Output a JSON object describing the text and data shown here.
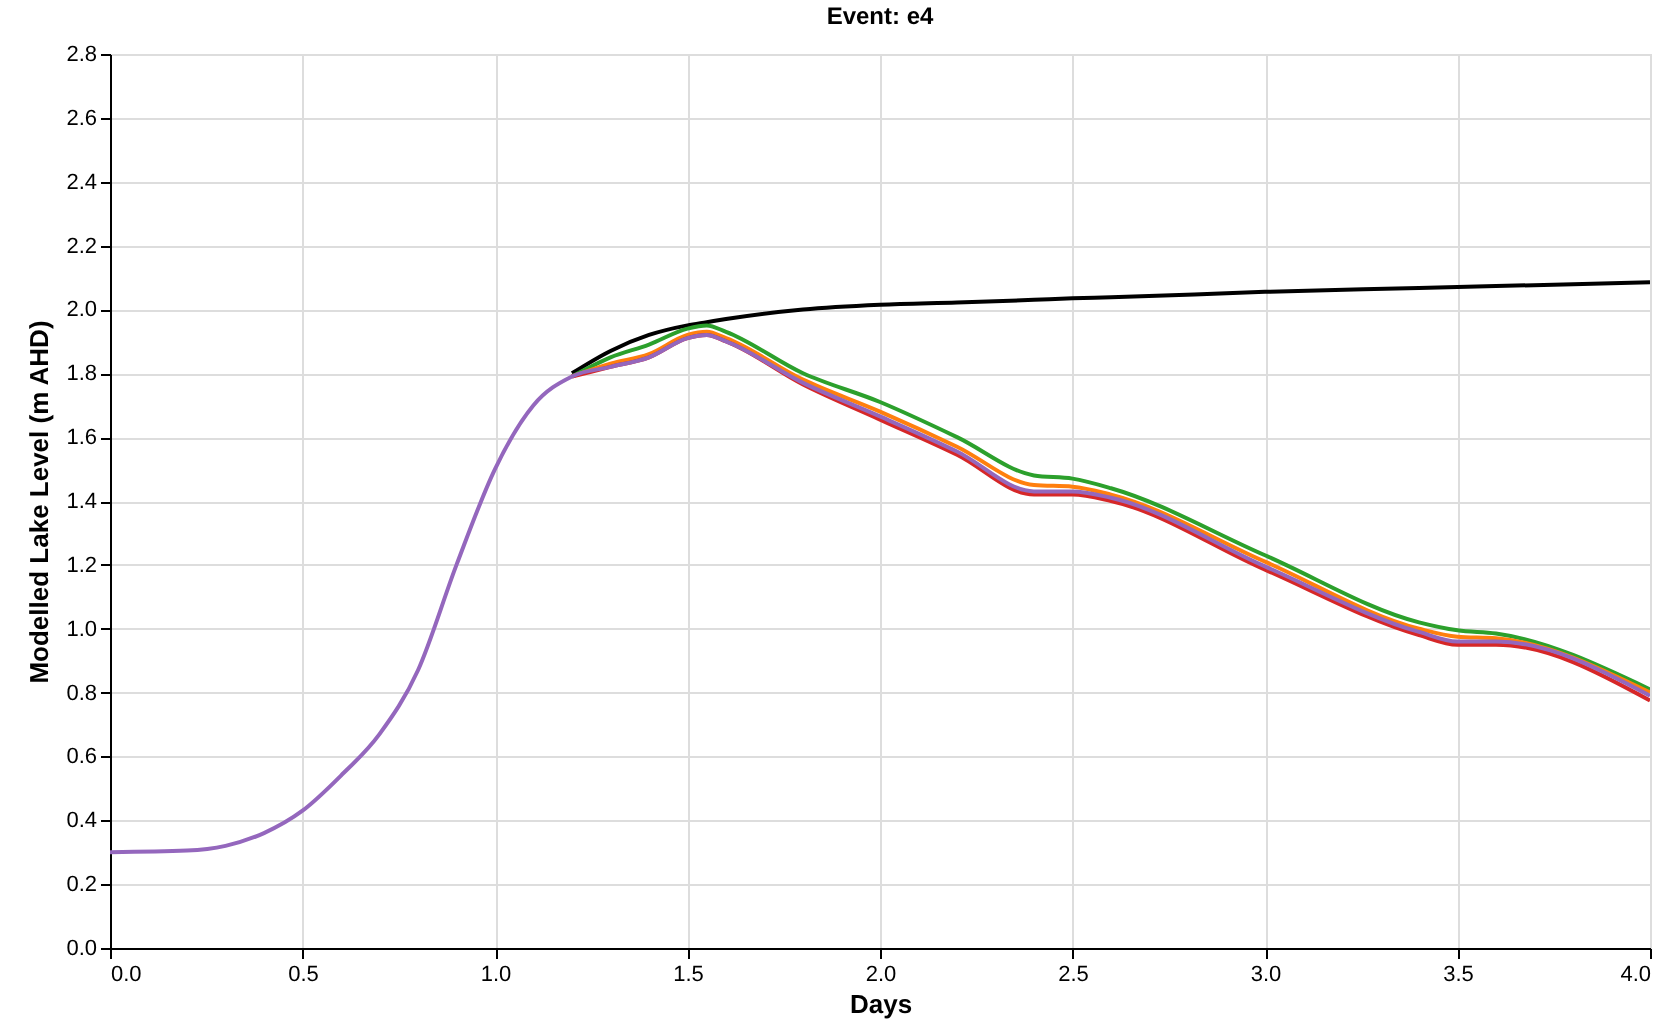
{
  "chart_data": {
    "type": "line",
    "title": "Event: e4",
    "xlabel": "Days",
    "ylabel": "Modelled Lake Level (m AHD)",
    "xlim": [
      0,
      4
    ],
    "xticks": [
      {
        "value": 0,
        "label": "0.0"
      },
      {
        "value": 0.5,
        "label": "0.5"
      },
      {
        "value": 1,
        "label": "1.0"
      },
      {
        "value": 1.5,
        "label": "1.5"
      },
      {
        "value": 2,
        "label": "2.0"
      },
      {
        "value": 2.5,
        "label": "2.5"
      },
      {
        "value": 3,
        "label": "3.0"
      },
      {
        "value": 3.5,
        "label": "3.5"
      },
      {
        "value": 4,
        "label": "4.0"
      }
    ],
    "ylim": [
      0,
      2.8
    ],
    "yticks": [
      {
        "value": 0,
        "label": "0.0"
      },
      {
        "value": 0.2,
        "label": "0.2"
      },
      {
        "value": 0.4,
        "label": "0.4"
      },
      {
        "value": 0.6,
        "label": "0.6"
      },
      {
        "value": 0.8,
        "label": "0.8"
      },
      {
        "value": 1,
        "label": "1.0"
      },
      {
        "value": 1.2,
        "label": "1.2"
      },
      {
        "value": 1.4,
        "label": "1.4"
      },
      {
        "value": 1.6,
        "label": "1.6"
      },
      {
        "value": 1.8,
        "label": "1.8"
      },
      {
        "value": 2,
        "label": "2.0"
      },
      {
        "value": 2.2,
        "label": "2.2"
      },
      {
        "value": 2.4,
        "label": "2.4"
      },
      {
        "value": 2.6,
        "label": "2.6"
      },
      {
        "value": 2.8,
        "label": "2.8"
      }
    ],
    "grid": true,
    "line_style": "solid",
    "marker": "none",
    "x": [
      0,
      0.2,
      0.3,
      0.4,
      0.5,
      0.6,
      0.7,
      0.8,
      0.9,
      1.0,
      1.1,
      1.2,
      1.3,
      1.4,
      1.5,
      1.55,
      1.6,
      1.8,
      2.0,
      2.2,
      2.4,
      2.5,
      2.6,
      3.0,
      3.4,
      3.5,
      3.6,
      4.0
    ],
    "series": [
      {
        "color": "#000000",
        "values": [
          null,
          null,
          null,
          null,
          null,
          null,
          null,
          null,
          null,
          null,
          null,
          1.8,
          1.87,
          1.92,
          1.95,
          1.96,
          1.97,
          2.0,
          2.015,
          2.022,
          2.03,
          2.035,
          2.038,
          2.055,
          2.067,
          2.07,
          2.073,
          2.085
        ]
      },
      {
        "color": "#2ca02c",
        "values": [
          null,
          null,
          null,
          null,
          null,
          null,
          null,
          null,
          null,
          null,
          null,
          1.79,
          1.85,
          1.89,
          1.94,
          1.95,
          1.93,
          1.8,
          1.71,
          1.6,
          1.48,
          1.47,
          1.44,
          1.23,
          1.02,
          0.995,
          0.985,
          0.81
        ]
      },
      {
        "color": "#ff7f0e",
        "values": [
          null,
          null,
          null,
          null,
          null,
          null,
          null,
          null,
          null,
          null,
          null,
          1.79,
          1.83,
          1.86,
          1.92,
          1.93,
          1.91,
          1.78,
          1.68,
          1.57,
          1.45,
          1.445,
          1.42,
          1.21,
          1.0,
          0.975,
          0.97,
          0.8
        ]
      },
      {
        "color": "#d62728",
        "values": [
          null,
          null,
          null,
          null,
          null,
          null,
          null,
          null,
          null,
          null,
          null,
          1.79,
          1.82,
          1.85,
          1.91,
          1.92,
          1.9,
          1.765,
          1.655,
          1.545,
          1.42,
          1.42,
          1.4,
          1.185,
          0.98,
          0.95,
          0.95,
          0.775
        ]
      },
      {
        "color": "#9467bd",
        "values": [
          0.3,
          0.305,
          0.32,
          0.36,
          0.43,
          0.54,
          0.67,
          0.87,
          1.2,
          1.5,
          1.7,
          1.79,
          1.82,
          1.85,
          1.91,
          1.92,
          1.9,
          1.77,
          1.665,
          1.555,
          1.43,
          1.43,
          1.41,
          1.195,
          0.99,
          0.96,
          0.96,
          0.79
        ]
      }
    ]
  }
}
